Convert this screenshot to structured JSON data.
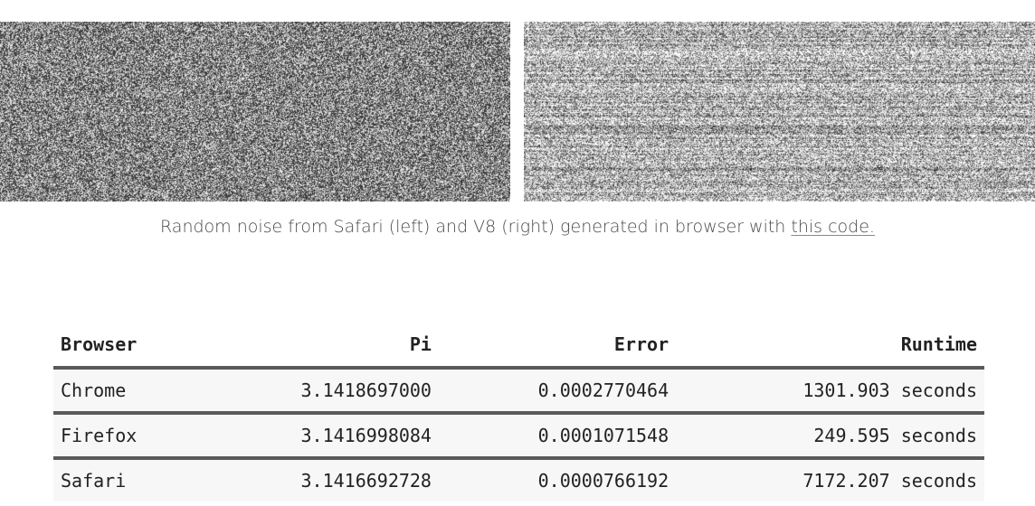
{
  "figure": {
    "left_image_alt": "Random noise from Safari",
    "right_image_alt": "Random noise from V8",
    "caption_text": "Random noise from Safari (left) and V8 (right) generated in browser with ",
    "caption_link": "this code."
  },
  "table": {
    "headers": [
      "Browser",
      "Pi",
      "Error",
      "Runtime"
    ],
    "rows": [
      [
        "Chrome",
        "3.1418697000",
        "0.0002770464",
        "1301.903 seconds"
      ],
      [
        "Firefox",
        "3.1416998084",
        "0.0001071548",
        "249.595 seconds"
      ],
      [
        "Safari",
        "3.1416692728",
        "0.0000766192",
        "7172.207 seconds"
      ]
    ]
  }
}
